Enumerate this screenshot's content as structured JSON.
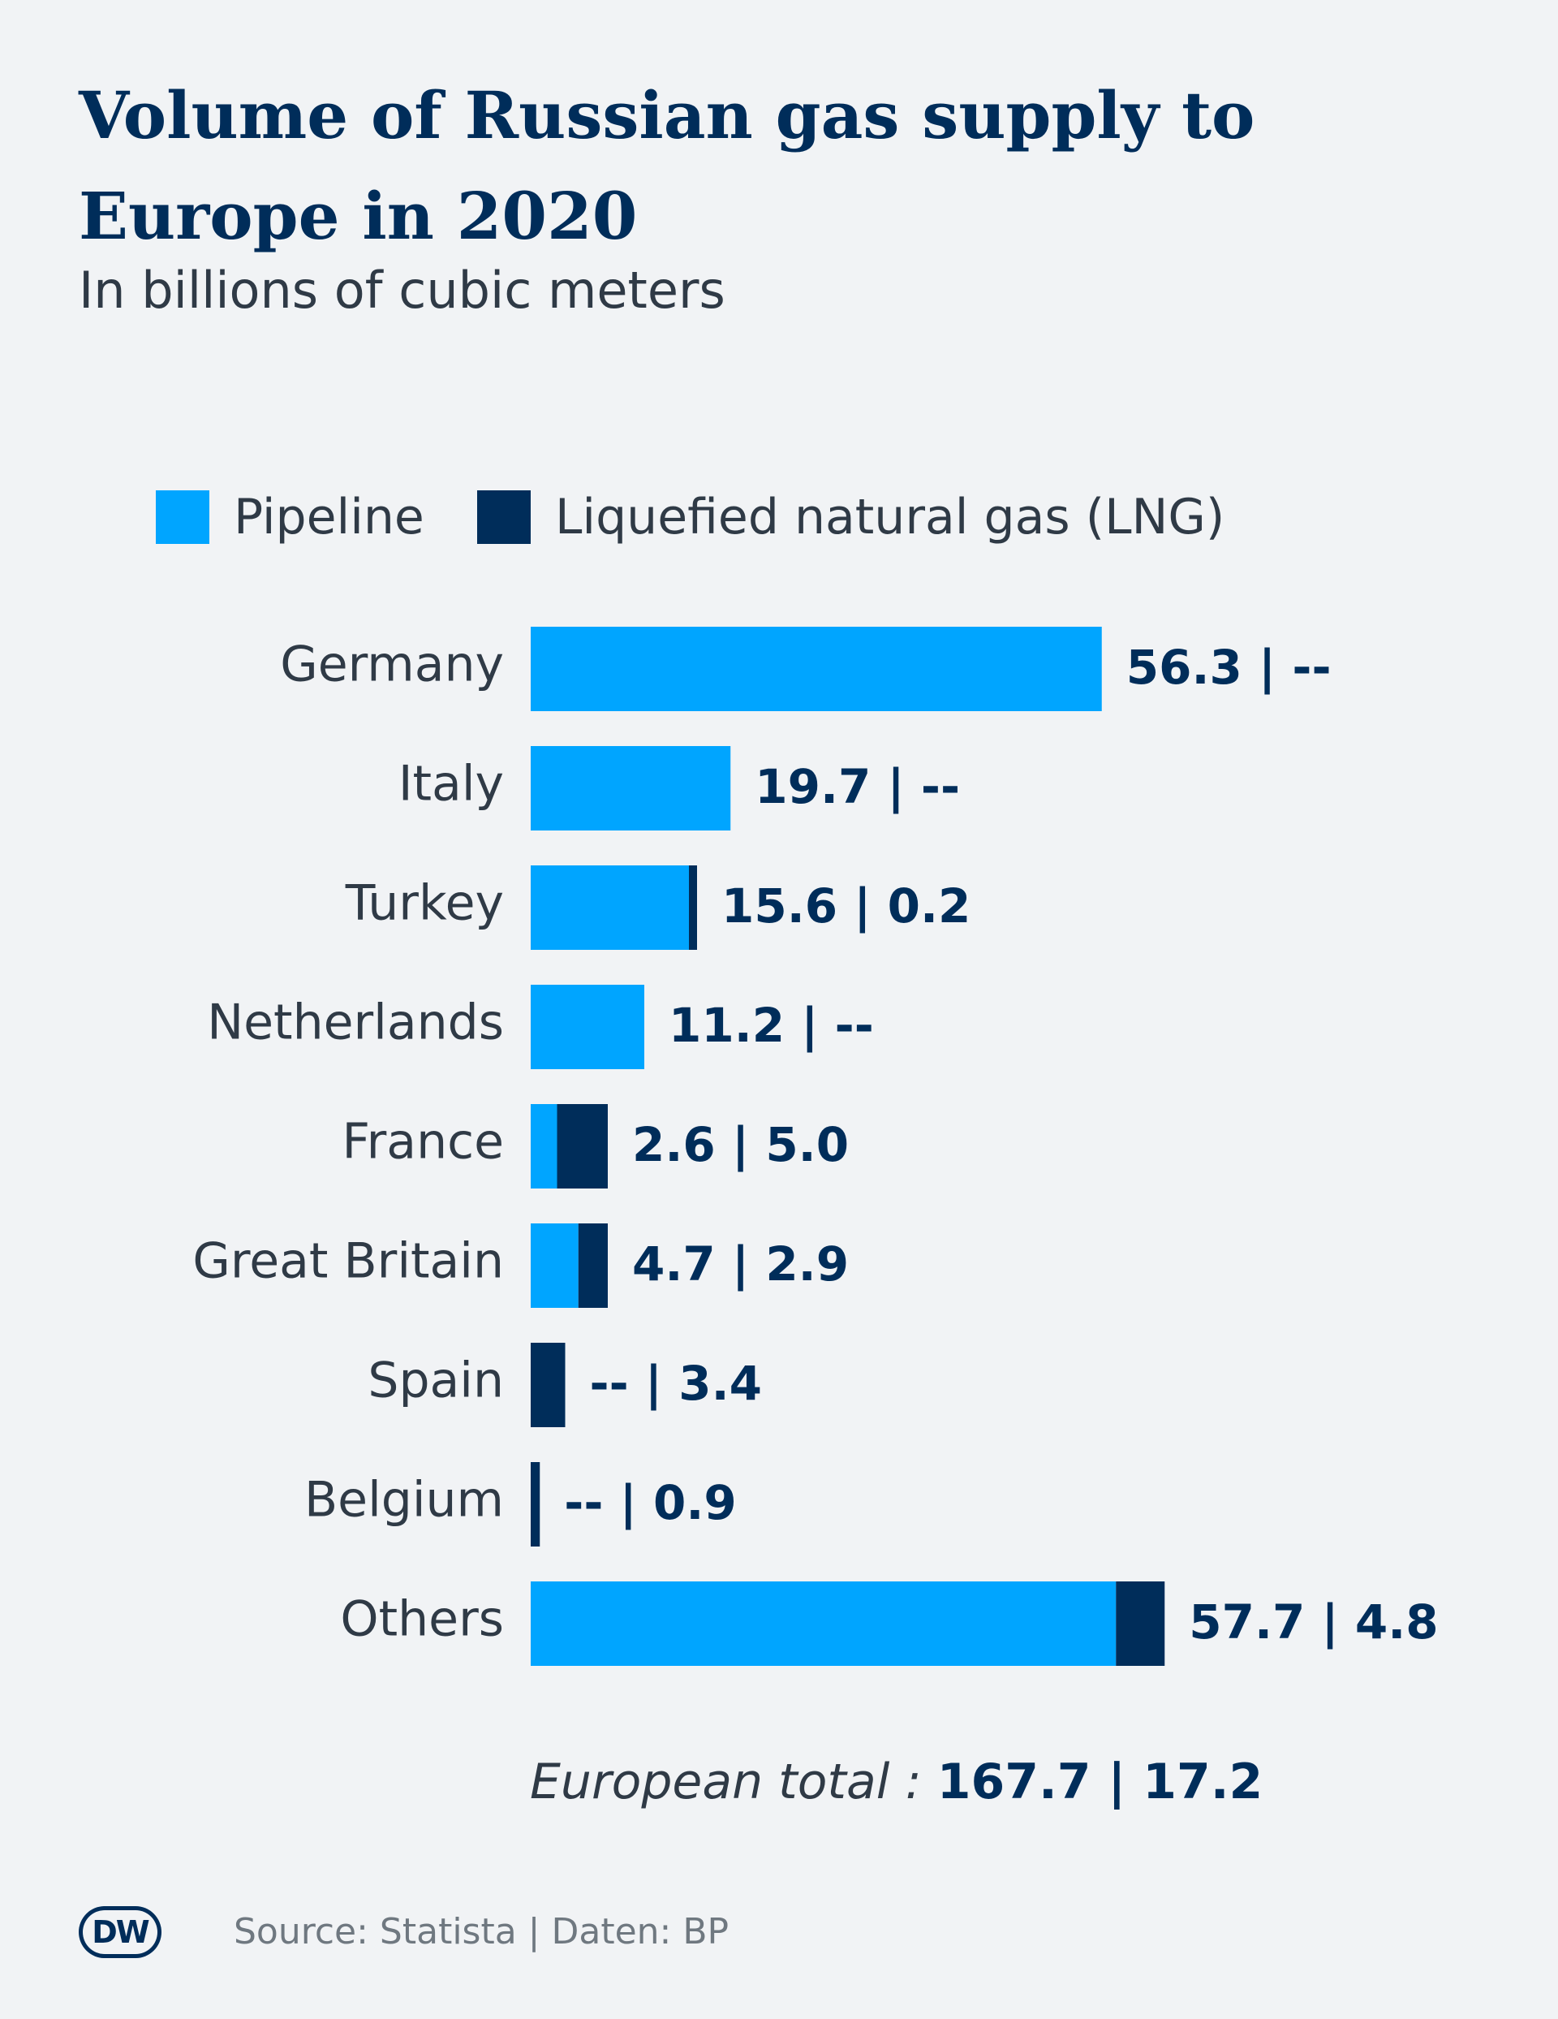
{
  "title": "Volume of Russian gas supply to Europe in 2020",
  "subtitle": "In billions of cubic meters",
  "legend": [
    {
      "label": "Pipeline",
      "color": "#00a5ff"
    },
    {
      "label": "Liquefied natural gas (LNG)",
      "color": "#002d5a"
    }
  ],
  "chart_data": {
    "type": "bar",
    "orientation": "horizontal",
    "stacked": true,
    "title": "Volume of Russian gas supply to Europe in 2020",
    "subtitle": "In billions of cubic meters",
    "categories": [
      "Germany",
      "Italy",
      "Turkey",
      "Netherlands",
      "France",
      "Great Britain",
      "Spain",
      "Belgium",
      "Others"
    ],
    "series": [
      {
        "name": "Pipeline",
        "color": "#00a5ff",
        "values": [
          56.3,
          19.7,
          15.6,
          11.2,
          2.6,
          4.7,
          0,
          0,
          57.7
        ]
      },
      {
        "name": "Liquefied natural gas (LNG)",
        "color": "#002d5a",
        "values": [
          0,
          0,
          0.2,
          0,
          5.0,
          2.9,
          3.4,
          0.9,
          4.8
        ]
      }
    ],
    "value_labels": [
      "56.3 | --",
      "19.7 | --",
      "15.6 | 0.2",
      "11.2 | --",
      "2.6 | 5.0",
      "4.7 | 2.9",
      "-- | 3.4",
      "-- | 0.9",
      "57.7 | 4.8"
    ],
    "xlim": [
      0,
      62.5
    ],
    "grid": false,
    "legend_position": "top"
  },
  "total": {
    "label": "European total :",
    "value": "167.7 | 17.2"
  },
  "logo": "DW",
  "source": "Source: Statista | Daten: BP"
}
